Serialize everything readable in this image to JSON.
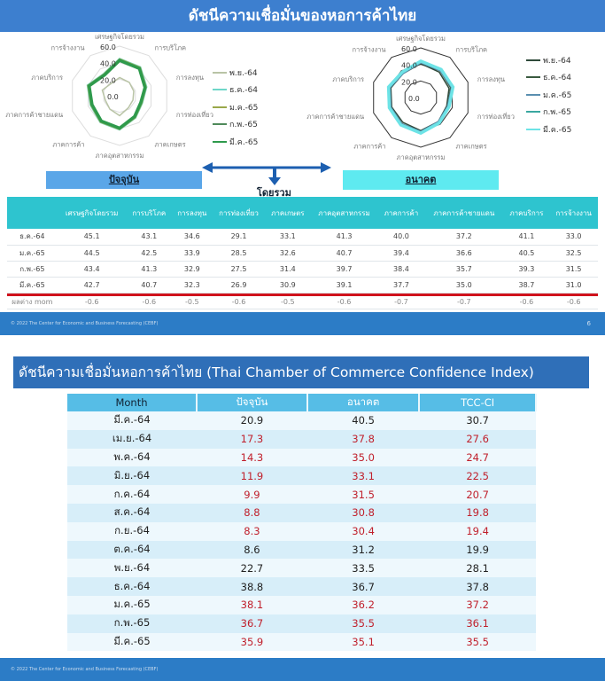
{
  "slide1": {
    "title": "ดัชนีความเชื่อมั่นของหอการค้าไทย",
    "current_button": "ปัจจุบัน",
    "future_button": "อนาคต",
    "overall_label": "โดยรวม",
    "footer": "© 2022 The Center for Economic and Business Forecasting (CEBF)",
    "page_number": "6",
    "table": {
      "headers": [
        "",
        "เศรษฐกิจโดยรวม",
        "การบริโภค",
        "การลงทุน",
        "การท่องเที่ยว",
        "ภาคเกษตร",
        "ภาคอุตสาหกรรม",
        "ภาคการค้า",
        "ภาคการค้าชายแดน",
        "ภาคบริการ",
        "การจ้างงาน"
      ],
      "rows": [
        [
          "ธ.ค.-64",
          "45.1",
          "43.1",
          "34.6",
          "29.1",
          "33.1",
          "41.3",
          "40.0",
          "37.2",
          "41.1",
          "33.0"
        ],
        [
          "ม.ค.-65",
          "44.5",
          "42.5",
          "33.9",
          "28.5",
          "32.6",
          "40.7",
          "39.4",
          "36.6",
          "40.5",
          "32.5"
        ],
        [
          "ก.พ.-65",
          "43.4",
          "41.3",
          "32.9",
          "27.5",
          "31.4",
          "39.7",
          "38.4",
          "35.7",
          "39.3",
          "31.5"
        ],
        [
          "มี.ค.-65",
          "42.7",
          "40.7",
          "32.3",
          "26.9",
          "30.9",
          "39.1",
          "37.7",
          "35.0",
          "38.7",
          "31.0"
        ]
      ],
      "mom": [
        "ผลต่าง mom",
        "-0.6",
        "-0.6",
        "-0.5",
        "-0.6",
        "-0.5",
        "-0.6",
        "-0.7",
        "-0.7",
        "-0.6",
        "-0.6"
      ]
    }
  },
  "chart_data": [
    {
      "type": "radar",
      "title": "ปัจจุบัน",
      "axes": [
        "เศรษฐกิจโดยรวม",
        "การบริโภค",
        "การลงทุน",
        "การท่องเที่ยว",
        "ภาคเกษตร",
        "ภาคอุตสาหกรรม",
        "ภาคการค้า",
        "ภาคการค้าชายแดน",
        "ภาคบริการ",
        "การจ้างงาน"
      ],
      "ticks": [
        "0.0",
        "20.0",
        "40.0",
        "60.0"
      ],
      "range": [
        0,
        60
      ],
      "series": [
        {
          "name": "พ.ย.-64",
          "color": "#b9c4a6",
          "values": [
            22,
            20,
            18,
            17,
            18,
            24,
            20,
            18,
            22,
            18
          ]
        },
        {
          "name": "ธ.ค.-64",
          "color": "#6fd7c9",
          "values": [
            45.1,
            43.1,
            34.6,
            29.1,
            33.1,
            41.3,
            40.0,
            37.2,
            41.1,
            33.0
          ]
        },
        {
          "name": "ม.ค.-65",
          "color": "#9aa84a",
          "values": [
            44.5,
            42.5,
            33.9,
            28.5,
            32.6,
            40.7,
            39.4,
            36.6,
            40.5,
            32.5
          ]
        },
        {
          "name": "ก.พ.-65",
          "color": "#4f8a5a",
          "values": [
            43.4,
            41.3,
            32.9,
            27.5,
            31.4,
            39.7,
            38.4,
            35.7,
            39.3,
            31.5
          ]
        },
        {
          "name": "มี.ค.-65",
          "color": "#2e9a4c",
          "values": [
            42.7,
            40.7,
            32.3,
            26.9,
            30.9,
            39.1,
            37.7,
            35.0,
            38.7,
            31.0
          ]
        }
      ]
    },
    {
      "type": "radar",
      "title": "อนาคต",
      "axes": [
        "เศรษฐกิจโดยรวม",
        "การบริโภค",
        "การลงทุน",
        "การท่องเที่ยว",
        "ภาคเกษตร",
        "ภาคอุตสาหกรรม",
        "ภาคการค้า",
        "ภาคการค้าชายแดน",
        "ภาคบริการ",
        "การจ้างงาน"
      ],
      "ticks": [
        "0.0",
        "20.0",
        "40.0",
        "60.0"
      ],
      "range": [
        0,
        60
      ],
      "series": [
        {
          "name": "พ.ย.-64",
          "color": "#2f4a3a",
          "values": [
            41,
            38,
            36,
            33,
            36,
            40,
            37,
            37,
            38,
            36
          ]
        },
        {
          "name": "ธ.ค.-64",
          "color": "#3a5a40",
          "values": [
            43,
            40,
            38,
            34,
            37,
            42,
            39,
            38,
            40,
            37
          ]
        },
        {
          "name": "ม.ค.-65",
          "color": "#5a8fb0",
          "values": [
            42,
            40,
            39,
            34,
            36,
            41,
            39,
            38,
            39,
            36
          ]
        },
        {
          "name": "ก.พ.-65",
          "color": "#3aa7a0",
          "values": [
            43,
            41,
            40,
            35,
            37,
            42,
            40,
            39,
            40,
            37
          ]
        },
        {
          "name": "มี.ค.-65",
          "color": "#6de3e6",
          "values": [
            44,
            42,
            41,
            36,
            38,
            43,
            41,
            40,
            41,
            38
          ]
        }
      ]
    }
  ],
  "slide2": {
    "title": "ดัชนีความเชื่อมั่นหอการค้าไทย (Thai Chamber of Commerce Confidence Index)",
    "headers": [
      "Month",
      "ปัจจุบัน",
      "อนาคต",
      "TCC-CI"
    ],
    "rows": [
      {
        "cells": [
          "มี.ค.-64",
          "20.9",
          "40.5",
          "30.7"
        ],
        "red": false
      },
      {
        "cells": [
          "เม.ย.-64",
          "17.3",
          "37.8",
          "27.6"
        ],
        "red": true
      },
      {
        "cells": [
          "พ.ค.-64",
          "14.3",
          "35.0",
          "24.7"
        ],
        "red": true
      },
      {
        "cells": [
          "มิ.ย.-64",
          "11.9",
          "33.1",
          "22.5"
        ],
        "red": true
      },
      {
        "cells": [
          "ก.ค.-64",
          "9.9",
          "31.5",
          "20.7"
        ],
        "red": true
      },
      {
        "cells": [
          "ส.ค.-64",
          "8.8",
          "30.8",
          "19.8"
        ],
        "red": true
      },
      {
        "cells": [
          "ก.ย.-64",
          "8.3",
          "30.4",
          "19.4"
        ],
        "red": true
      },
      {
        "cells": [
          "ต.ค.-64",
          "8.6",
          "31.2",
          "19.9"
        ],
        "red": false
      },
      {
        "cells": [
          "พ.ย.-64",
          "22.7",
          "33.5",
          "28.1"
        ],
        "red": false
      },
      {
        "cells": [
          "ธ.ค.-64",
          "38.8",
          "36.7",
          "37.8"
        ],
        "red": false
      },
      {
        "cells": [
          "ม.ค.-65",
          "38.1",
          "36.2",
          "37.2"
        ],
        "red": true
      },
      {
        "cells": [
          "ก.พ.-65",
          "36.7",
          "35.5",
          "36.1"
        ],
        "red": true
      },
      {
        "cells": [
          "มี.ค.-65",
          "35.9",
          "35.1",
          "35.5"
        ],
        "red": true
      }
    ],
    "footer": "© 2022 The Center for Economic and Business Forecasting (CEBF)"
  }
}
